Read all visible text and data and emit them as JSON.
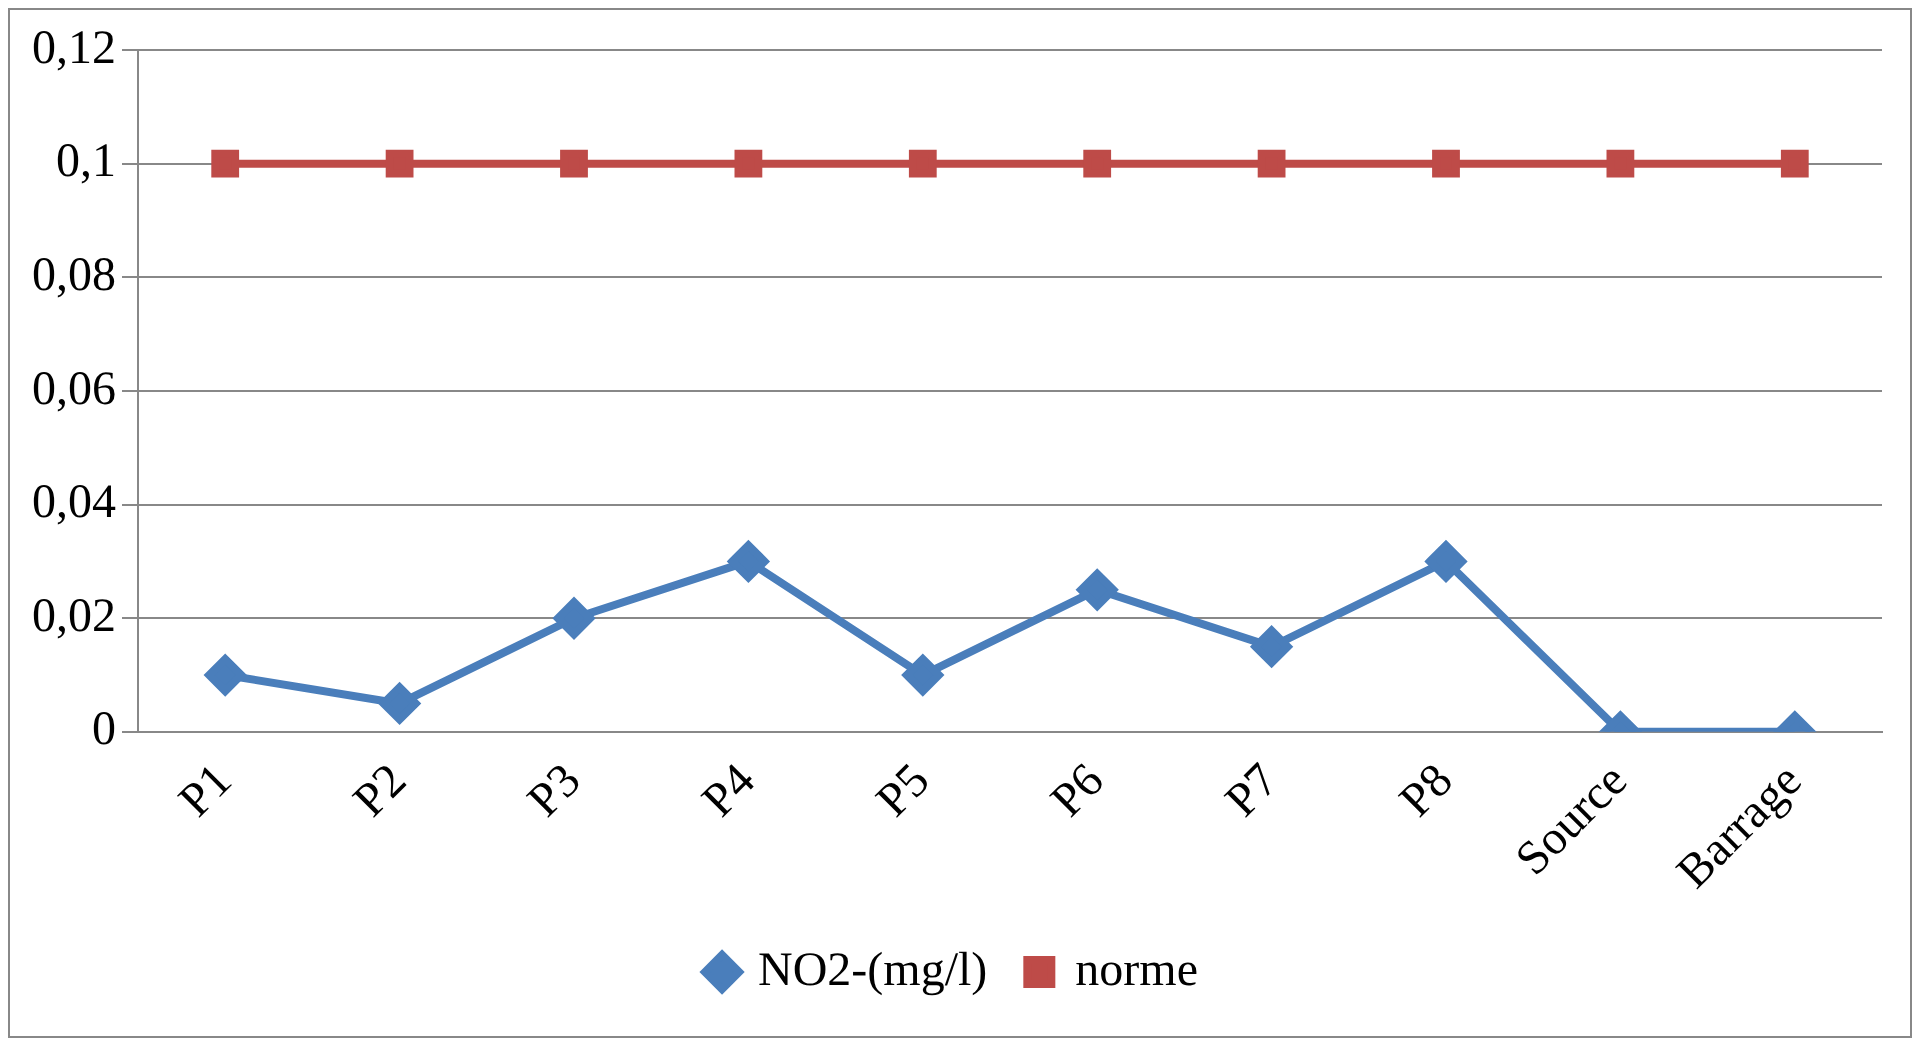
{
  "chart_data": {
    "type": "line",
    "categories": [
      "P1",
      "P2",
      "P3",
      "P4",
      "P5",
      "P6",
      "P7",
      "P8",
      "Source",
      "Barrage"
    ],
    "series": [
      {
        "name": "NO2-(mg/l)",
        "color": "#4a7ebb",
        "marker": "diamond",
        "values": [
          0.01,
          0.005,
          0.02,
          0.03,
          0.01,
          0.025,
          0.015,
          0.03,
          0,
          0
        ]
      },
      {
        "name": "norme",
        "color": "#be4b48",
        "marker": "square",
        "values": [
          0.1,
          0.1,
          0.1,
          0.1,
          0.1,
          0.1,
          0.1,
          0.1,
          0.1,
          0.1
        ]
      }
    ],
    "ylim": [
      0,
      0.12
    ],
    "yticks": [
      0,
      {
        "value": 0.02,
        "label": "0,02"
      },
      {
        "value": 0.04,
        "label": "0,04"
      },
      {
        "value": 0.06,
        "label": "0,06"
      },
      {
        "value": 0.08,
        "label": "0,08"
      },
      {
        "value": 0.1,
        "label": "0,1"
      },
      {
        "value": 0.12,
        "label": "0,12"
      }
    ],
    "grid": "y",
    "legend": "bottom",
    "line_style": "solid"
  }
}
